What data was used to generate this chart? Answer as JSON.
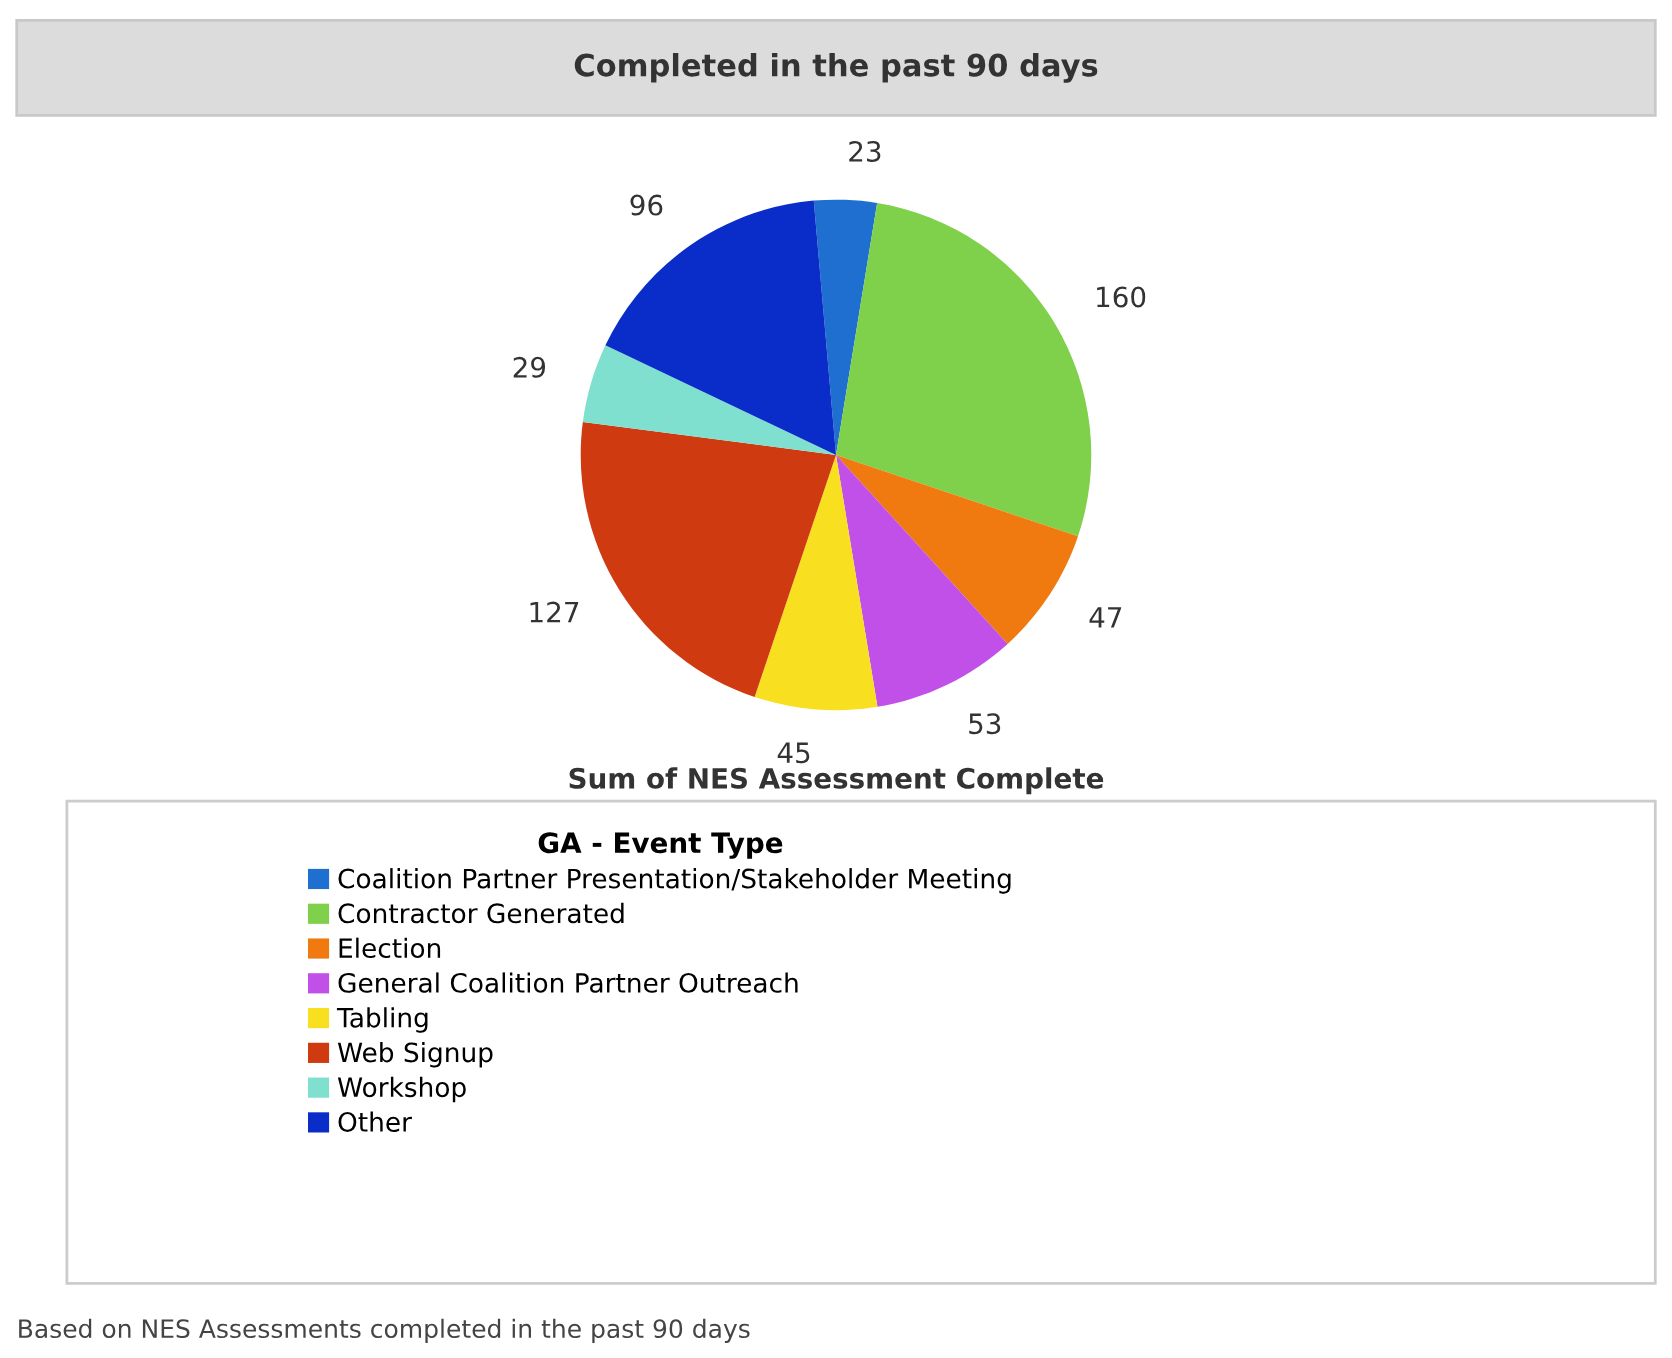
{
  "chart_data": {
    "type": "pie",
    "title": "Completed in the past 90 days",
    "xlabel": "Sum of NES Assessment Complete",
    "legend_title": "GA - Event Type",
    "categories": [
      "Coalition Partner Presentation/Stakeholder Meeting",
      "Contractor Generated",
      "Election",
      "General Coalition Partner Outreach",
      "Tabling",
      "Web Signup",
      "Workshop",
      "Other"
    ],
    "values": [
      23,
      160,
      47,
      53,
      45,
      127,
      29,
      96
    ],
    "colors": [
      "#1f6fd0",
      "#7fd04a",
      "#f07a10",
      "#c050e8",
      "#f8e020",
      "#d03a10",
      "#80e0d0",
      "#0a2cc8"
    ],
    "data_labels": true,
    "legend": "bottom",
    "annotations": [
      "Based on NES Assessments completed in the past 90 days"
    ]
  }
}
